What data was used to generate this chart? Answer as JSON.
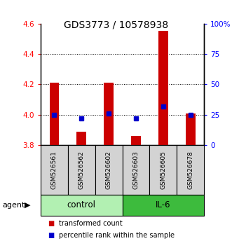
{
  "title": "GDS3773 / 10578938",
  "samples": [
    "GSM526561",
    "GSM526562",
    "GSM526602",
    "GSM526603",
    "GSM526605",
    "GSM526678"
  ],
  "groups": [
    "control",
    "control",
    "control",
    "IL-6",
    "IL-6",
    "IL-6"
  ],
  "group_labels": [
    "control",
    "IL-6"
  ],
  "group_colors": [
    "#b2f0b2",
    "#3dbb3d"
  ],
  "transformed_counts": [
    4.21,
    3.89,
    4.21,
    3.86,
    4.55,
    4.01
  ],
  "percentile_ranks": [
    25,
    22,
    26,
    22,
    32,
    25
  ],
  "y_min": 3.8,
  "y_max": 4.6,
  "y_ticks": [
    3.8,
    4.0,
    4.2,
    4.4,
    4.6
  ],
  "y_right_ticks": [
    0,
    25,
    50,
    75,
    100
  ],
  "y_right_labels": [
    "0",
    "25",
    "50",
    "75",
    "100%"
  ],
  "bar_color": "#CC0000",
  "marker_color": "#0000CC",
  "bar_width": 0.35,
  "legend_bar_label": "transformed count",
  "legend_marker_label": "percentile rank within the sample",
  "agent_label": "agent",
  "background_color": "#ffffff",
  "label_area_color": "#d3d3d3",
  "grid_ticks": [
    4.0,
    4.2,
    4.4
  ]
}
